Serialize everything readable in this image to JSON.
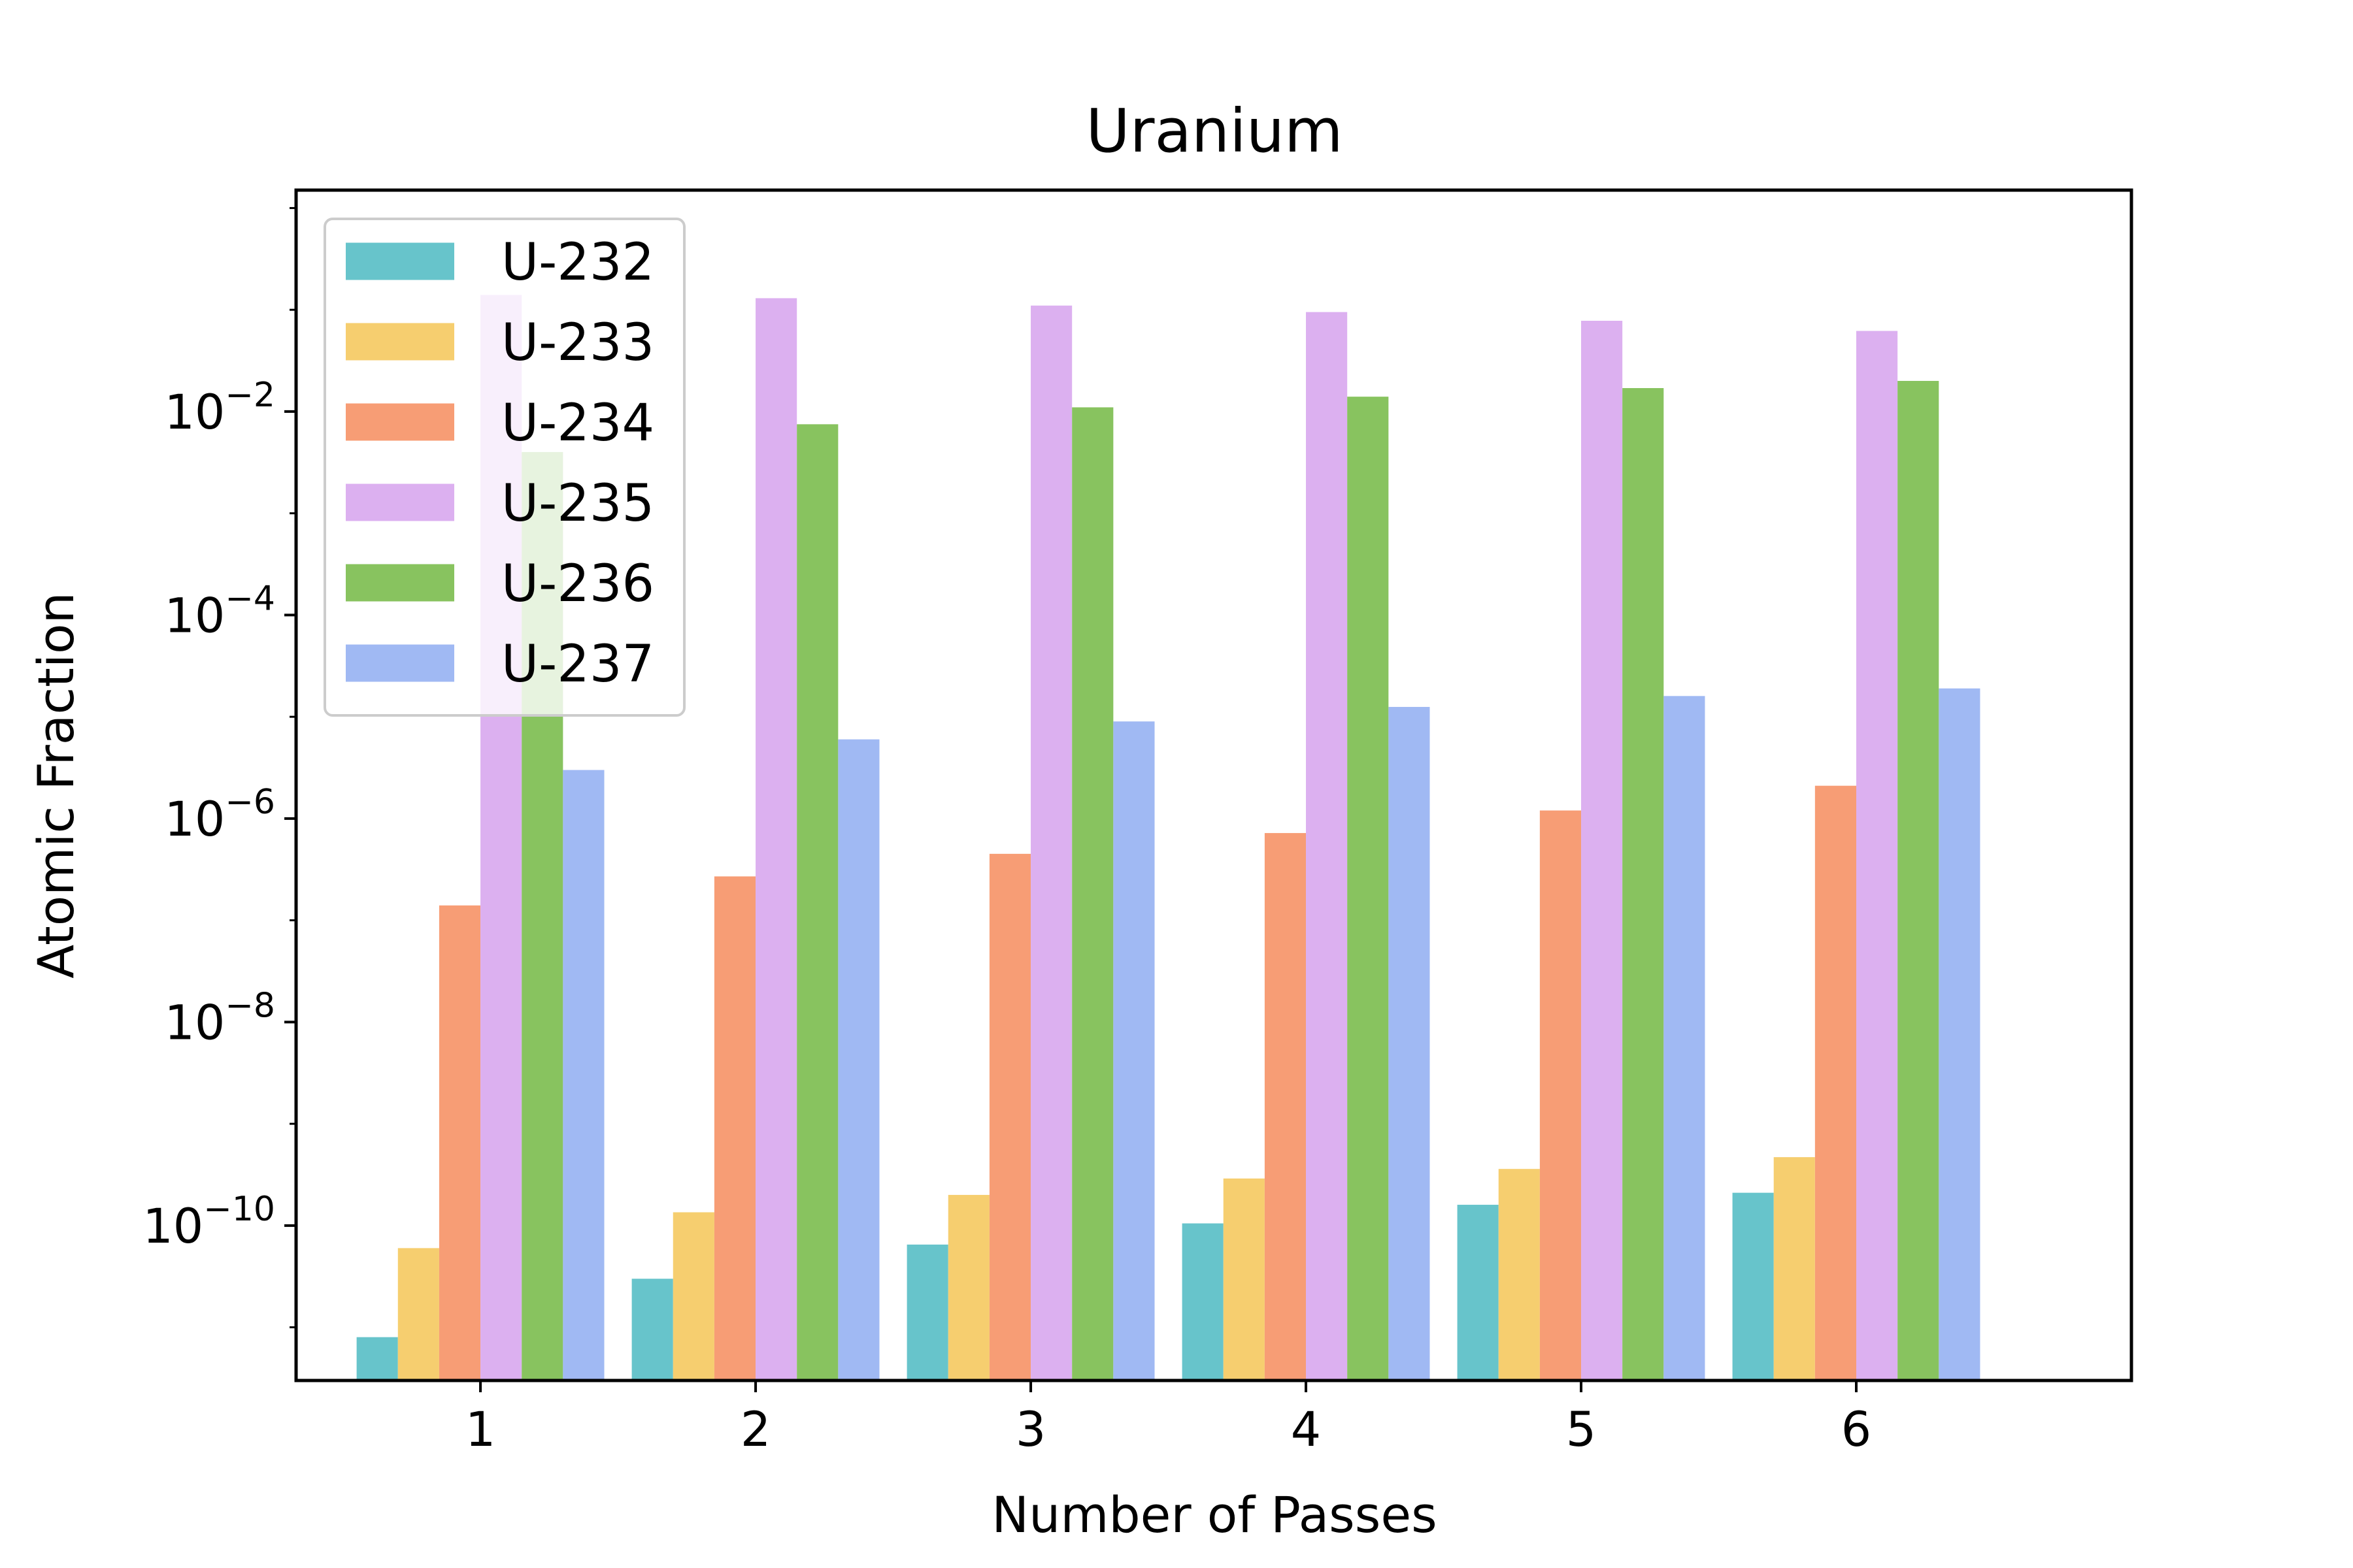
{
  "chart_data": {
    "type": "bar",
    "title": "Uranium",
    "xlabel": "Number of Passes",
    "ylabel": "Atomic Fraction",
    "yscale": "log",
    "ylim": [
      3e-12,
      1.5
    ],
    "grid": false,
    "legend_position": "top-left",
    "categories": [
      "1",
      "2",
      "3",
      "4",
      "5",
      "6"
    ],
    "y_ticks": [
      {
        "base": "10",
        "exp": "−10",
        "value": 1e-10
      },
      {
        "base": "10",
        "exp": "−8",
        "value": 1e-08
      },
      {
        "base": "10",
        "exp": "−6",
        "value": 1e-06
      },
      {
        "base": "10",
        "exp": "−4",
        "value": 0.0001
      },
      {
        "base": "10",
        "exp": "−2",
        "value": 0.01
      }
    ],
    "series": [
      {
        "name": "U-232",
        "color": "#67c4cb",
        "values": [
          8e-12,
          3e-11,
          6.5e-11,
          1.05e-10,
          1.6e-10,
          2.1e-10
        ]
      },
      {
        "name": "U-233",
        "color": "#f6ce6f",
        "values": [
          6e-11,
          1.35e-10,
          2e-10,
          2.9e-10,
          3.6e-10,
          4.7e-10
        ]
      },
      {
        "name": "U-234",
        "color": "#f79d75",
        "values": [
          1.4e-07,
          2.7e-07,
          4.5e-07,
          7.2e-07,
          1.2e-06,
          2.1e-06
        ]
      },
      {
        "name": "U-235",
        "color": "#dcb0f0",
        "values": [
          0.14,
          0.13,
          0.11,
          0.095,
          0.078,
          0.062
        ]
      },
      {
        "name": "U-236",
        "color": "#88c35f",
        "values": [
          0.004,
          0.0075,
          0.011,
          0.014,
          0.017,
          0.02
        ]
      },
      {
        "name": "U-237",
        "color": "#a0b9f3",
        "values": [
          3e-06,
          6e-06,
          9e-06,
          1.25e-05,
          1.6e-05,
          1.9e-05
        ]
      }
    ]
  }
}
